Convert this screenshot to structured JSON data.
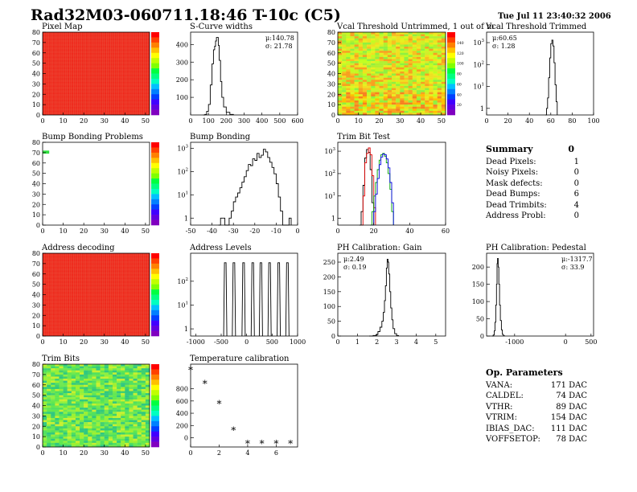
{
  "title": "Rad32M03-060711.18:46 T-10c (C5)",
  "date": "Tue Jul 11 23:40:32 2006",
  "summary": {
    "title": "Summary",
    "value": "0",
    "rows": [
      {
        "label": "Dead Pixels:",
        "value": "1"
      },
      {
        "label": "Noisy Pixels:",
        "value": "0"
      },
      {
        "label": "Mask defects:",
        "value": "0"
      },
      {
        "label": "Dead Bumps:",
        "value": "6"
      },
      {
        "label": "Dead Trimbits:",
        "value": "4"
      },
      {
        "label": "Address Probl:",
        "value": "0"
      }
    ]
  },
  "op_params": {
    "title": "Op. Parameters",
    "rows": [
      {
        "label": "VANA:",
        "value": "171 DAC"
      },
      {
        "label": "CALDEL:",
        "value": "74 DAC"
      },
      {
        "label": "VTHR:",
        "value": "89 DAC"
      },
      {
        "label": "VTRIM:",
        "value": "154 DAC"
      },
      {
        "label": "IBIAS_DAC:",
        "value": "111 DAC"
      },
      {
        "label": "VOFFSETOP:",
        "value": "78 DAC"
      }
    ]
  },
  "chart_data": [
    {
      "id": "pixel_map",
      "type": "heatmap",
      "title": "Pixel Map",
      "xlim": [
        0,
        52
      ],
      "ylim": [
        0,
        80
      ],
      "xticks": [
        0,
        10,
        20,
        30,
        40,
        50
      ],
      "yticks": [
        0,
        10,
        20,
        30,
        40,
        50,
        60,
        70,
        80
      ],
      "pattern": "uniform",
      "base_color": "#f02418"
    },
    {
      "id": "scurve",
      "type": "histogram",
      "title": "S-Curve widths",
      "xlim": [
        0,
        600
      ],
      "ylim": [
        0,
        470
      ],
      "xticks": [
        0,
        100,
        200,
        300,
        400,
        500,
        600
      ],
      "yticks": [
        100,
        200,
        300,
        400
      ],
      "log": false,
      "stats": [
        "μ:140.78",
        "σ: 21.78"
      ],
      "series": [
        {
          "color": "#000",
          "points": [
            [
              70,
              0
            ],
            [
              80,
              3
            ],
            [
              90,
              20
            ],
            [
              100,
              60
            ],
            [
              110,
              170
            ],
            [
              120,
              290
            ],
            [
              128,
              370
            ],
            [
              135,
              390
            ],
            [
              140,
              420
            ],
            [
              145,
              440
            ],
            [
              150,
              440
            ],
            [
              155,
              395
            ],
            [
              160,
              310
            ],
            [
              168,
              190
            ],
            [
              175,
              100
            ],
            [
              185,
              45
            ],
            [
              200,
              15
            ],
            [
              220,
              3
            ],
            [
              240,
              0
            ]
          ]
        }
      ]
    },
    {
      "id": "vcal_untrimmed",
      "type": "heatmap",
      "title": "Vcal Threshold Untrimmed, 1 out of m",
      "xlim": [
        0,
        52
      ],
      "ylim": [
        0,
        80
      ],
      "xticks": [
        0,
        10,
        20,
        30,
        40,
        50
      ],
      "yticks": [
        0,
        10,
        20,
        30,
        40,
        50,
        60,
        70,
        80
      ],
      "pattern": "gradient",
      "palette_ticks": [
        "140",
        "120",
        "100",
        "80",
        "60",
        "40",
        "20"
      ]
    },
    {
      "id": "vcal_trimmed",
      "type": "histogram",
      "title": "Vcal Threshold Trimmed",
      "xlim": [
        0,
        100
      ],
      "ylim": [
        0.5,
        3000
      ],
      "xticks": [
        0,
        20,
        40,
        60,
        80,
        100
      ],
      "yticks": [
        1,
        10,
        100,
        1000
      ],
      "log": true,
      "stats": [
        "μ:60.65",
        "σ: 1.28"
      ],
      "series": [
        {
          "color": "#000",
          "points": [
            [
              55,
              0.5
            ],
            [
              56,
              1
            ],
            [
              57,
              3
            ],
            [
              58,
              25
            ],
            [
              59,
              200
            ],
            [
              60,
              900
            ],
            [
              61,
              1300
            ],
            [
              62,
              700
            ],
            [
              63,
              120
            ],
            [
              64,
              12
            ],
            [
              65,
              2
            ],
            [
              66,
              0.5
            ]
          ]
        }
      ]
    },
    {
      "id": "bump_problems",
      "type": "heatmap",
      "title": "Bump Bonding Problems",
      "xlim": [
        0,
        52
      ],
      "ylim": [
        0,
        80
      ],
      "xticks": [
        0,
        10,
        20,
        30,
        40,
        50
      ],
      "yticks": [
        0,
        10,
        20,
        30,
        40,
        50,
        60,
        70,
        80
      ],
      "pattern": "empty"
    },
    {
      "id": "bump_bonding",
      "type": "histogram",
      "title": "Bump Bonding",
      "xlim": [
        -50,
        0
      ],
      "ylim": [
        0.5,
        1800
      ],
      "xticks": [
        -50,
        -40,
        -30,
        -20,
        -10,
        0
      ],
      "yticks": [
        1,
        10,
        100,
        1000
      ],
      "log": true,
      "series": [
        {
          "color": "#000",
          "points": [
            [
              -37,
              0.5
            ],
            [
              -36,
              1
            ],
            [
              -35,
              1
            ],
            [
              -34,
              0.5
            ],
            [
              -32,
              1
            ],
            [
              -31,
              2
            ],
            [
              -30,
              5
            ],
            [
              -29,
              8
            ],
            [
              -28,
              12
            ],
            [
              -27,
              20
            ],
            [
              -26,
              35
            ],
            [
              -25,
              60
            ],
            [
              -24,
              110
            ],
            [
              -23,
              200
            ],
            [
              -22,
              180
            ],
            [
              -21,
              350
            ],
            [
              -20,
              300
            ],
            [
              -19,
              600
            ],
            [
              -18,
              400
            ],
            [
              -17,
              500
            ],
            [
              -16,
              900
            ],
            [
              -15,
              700
            ],
            [
              -14,
              400
            ],
            [
              -13,
              250
            ],
            [
              -12,
              150
            ],
            [
              -11,
              80
            ],
            [
              -10,
              30
            ],
            [
              -9,
              8
            ],
            [
              -8,
              2
            ],
            [
              -7,
              0.5
            ],
            [
              -5,
              0.5
            ],
            [
              -4,
              1
            ],
            [
              -3,
              0.5
            ]
          ]
        }
      ]
    },
    {
      "id": "trim_bit_test",
      "type": "histogram",
      "title": "Trim Bit Test",
      "xlim": [
        0,
        60
      ],
      "ylim": [
        0.5,
        2500
      ],
      "xticks": [
        0,
        20,
        40,
        60
      ],
      "yticks": [
        1,
        10,
        100,
        1000
      ],
      "log": true,
      "series": [
        {
          "color": "#000",
          "points": [
            [
              12,
              0.5
            ],
            [
              13,
              2
            ],
            [
              14,
              30
            ],
            [
              15,
              500
            ],
            [
              16,
              1200
            ],
            [
              17,
              900
            ],
            [
              18,
              150
            ],
            [
              19,
              5
            ],
            [
              20,
              0.5
            ]
          ]
        },
        {
          "color": "#e00000",
          "points": [
            [
              13,
              0.5
            ],
            [
              14,
              10
            ],
            [
              15,
              300
            ],
            [
              16,
              800
            ],
            [
              17,
              1400
            ],
            [
              18,
              700
            ],
            [
              19,
              80
            ],
            [
              20,
              3
            ],
            [
              21,
              0.5
            ]
          ]
        },
        {
          "color": "#00a000",
          "points": [
            [
              18,
              0.5
            ],
            [
              19,
              2
            ],
            [
              20,
              10
            ],
            [
              21,
              40
            ],
            [
              22,
              150
            ],
            [
              23,
              400
            ],
            [
              24,
              700
            ],
            [
              25,
              800
            ],
            [
              26,
              600
            ],
            [
              27,
              300
            ],
            [
              28,
              100
            ],
            [
              29,
              20
            ],
            [
              30,
              2
            ],
            [
              31,
              0.5
            ]
          ]
        },
        {
          "color": "#0000e0",
          "points": [
            [
              19,
              0.5
            ],
            [
              20,
              2
            ],
            [
              21,
              12
            ],
            [
              22,
              60
            ],
            [
              23,
              250
            ],
            [
              24,
              550
            ],
            [
              25,
              750
            ],
            [
              26,
              700
            ],
            [
              27,
              450
            ],
            [
              28,
              180
            ],
            [
              29,
              40
            ],
            [
              30,
              5
            ],
            [
              31,
              0.5
            ]
          ]
        }
      ]
    },
    {
      "id": "address_decoding",
      "type": "heatmap",
      "title": "Address decoding",
      "xlim": [
        0,
        52
      ],
      "ylim": [
        0,
        80
      ],
      "xticks": [
        0,
        10,
        20,
        30,
        40,
        50
      ],
      "yticks": [
        0,
        10,
        20,
        30,
        40,
        50,
        60,
        70,
        80
      ],
      "pattern": "uniform",
      "base_color": "#f02418"
    },
    {
      "id": "address_levels",
      "type": "histogram",
      "title": "Address Levels",
      "xlim": [
        -1100,
        1000
      ],
      "ylim": [
        0.5,
        1500
      ],
      "xticks": [
        -1000,
        -500,
        0,
        500,
        1000
      ],
      "yticks": [
        1,
        10,
        100
      ],
      "log": true,
      "spikes": {
        "x": [
          -420,
          -250,
          -60,
          120,
          280,
          450,
          630,
          800
        ],
        "height": 600
      },
      "series": []
    },
    {
      "id": "ph_gain",
      "type": "histogram",
      "title": "PH Calibration: Gain",
      "xlim": [
        0,
        5.5
      ],
      "ylim": [
        0,
        280
      ],
      "xticks": [
        0,
        1,
        2,
        3,
        4,
        5
      ],
      "yticks": [
        0,
        50,
        100,
        150,
        200,
        250
      ],
      "log": false,
      "stats": [
        "μ:2.49",
        "σ: 0.19"
      ],
      "series": [
        {
          "color": "#000",
          "points": [
            [
              1.6,
              0
            ],
            [
              1.8,
              2
            ],
            [
              1.95,
              5
            ],
            [
              2.05,
              15
            ],
            [
              2.15,
              30
            ],
            [
              2.25,
              50
            ],
            [
              2.32,
              80
            ],
            [
              2.38,
              120
            ],
            [
              2.43,
              170
            ],
            [
              2.48,
              230
            ],
            [
              2.52,
              260
            ],
            [
              2.56,
              250
            ],
            [
              2.6,
              210
            ],
            [
              2.65,
              150
            ],
            [
              2.7,
              95
            ],
            [
              2.76,
              55
            ],
            [
              2.82,
              25
            ],
            [
              2.9,
              8
            ],
            [
              3,
              2
            ],
            [
              3.1,
              0
            ]
          ]
        }
      ]
    },
    {
      "id": "ph_pedestal",
      "type": "histogram",
      "title": "PH Calibration: Pedestal",
      "xlim": [
        -1550,
        550
      ],
      "ylim": [
        0,
        240
      ],
      "xticks": [
        -1000,
        0,
        500
      ],
      "yticks": [
        0,
        50,
        100,
        150,
        200
      ],
      "log": false,
      "stats": [
        "μ:-1317.7",
        "σ: 33.9"
      ],
      "series": [
        {
          "color": "#000",
          "points": [
            [
              -1440,
              0
            ],
            [
              -1420,
              3
            ],
            [
              -1400,
              15
            ],
            [
              -1385,
              40
            ],
            [
              -1370,
              90
            ],
            [
              -1355,
              150
            ],
            [
              -1345,
              210
            ],
            [
              -1335,
              225
            ],
            [
              -1322,
              200
            ],
            [
              -1310,
              150
            ],
            [
              -1295,
              90
            ],
            [
              -1280,
              45
            ],
            [
              -1260,
              18
            ],
            [
              -1240,
              5
            ],
            [
              -1220,
              1
            ],
            [
              -1200,
              0
            ]
          ]
        }
      ]
    },
    {
      "id": "trim_bits",
      "type": "heatmap",
      "title": "Trim Bits",
      "xlim": [
        0,
        52
      ],
      "ylim": [
        0,
        80
      ],
      "xticks": [
        0,
        10,
        20,
        30,
        40,
        50
      ],
      "yticks": [
        0,
        10,
        20,
        30,
        40,
        50,
        60,
        70,
        80
      ],
      "pattern": "trimbits"
    },
    {
      "id": "temperature",
      "type": "scatter",
      "title": "Temperature calibration",
      "xlim": [
        0,
        7.5
      ],
      "ylim": [
        -150,
        1200
      ],
      "xticks": [
        0,
        2,
        4,
        6
      ],
      "yticks": [
        0,
        200,
        400,
        600,
        800
      ],
      "marker": "*",
      "x": [
        0,
        1,
        2,
        3,
        4,
        5,
        6,
        7
      ],
      "y": [
        1100,
        880,
        550,
        120,
        -100,
        -100,
        -100,
        -100
      ]
    }
  ]
}
